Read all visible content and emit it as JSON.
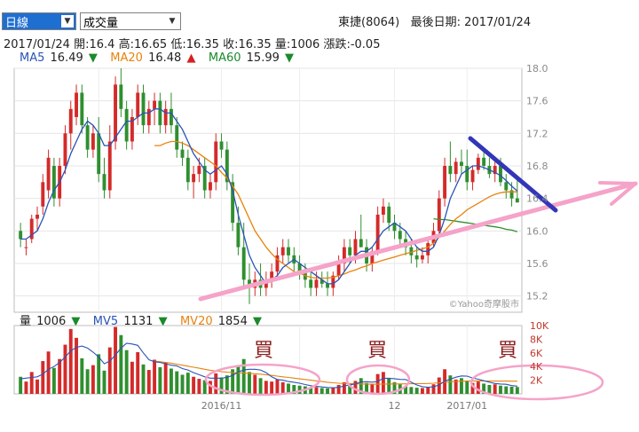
{
  "controls": {
    "period": "日線",
    "indicator": "成交量"
  },
  "header": {
    "stock": "東捷(8064)",
    "last_date_label": "最後日期:",
    "last_date": "2017/01/24"
  },
  "quote": {
    "date": "2017/01/24",
    "open_label": "開:",
    "open": "16.4",
    "high_label": "高:",
    "high": "16.65",
    "low_label": "低:",
    "low": "16.35",
    "close_label": "收:",
    "close": "16.35",
    "vol_label": "量:",
    "vol": "1006",
    "chg_label": "漲跌:",
    "chg": "-0.05"
  },
  "ma_legend": [
    {
      "label": "MA5",
      "value": "16.49",
      "dir": "▼",
      "color": "#2a53b8",
      "dircolor": "#1b8a2b"
    },
    {
      "label": "MA20",
      "value": "16.48",
      "dir": "▲",
      "color": "#e8820c",
      "dircolor": "#d62020"
    },
    {
      "label": "MA60",
      "value": "15.99",
      "dir": "▼",
      "color": "#1b8a2b",
      "dircolor": "#1b8a2b"
    }
  ],
  "vol_legend": [
    {
      "label": "量",
      "value": "1006",
      "dir": "▼",
      "color": "#222",
      "dircolor": "#1b8a2b"
    },
    {
      "label": "MV5",
      "value": "1131",
      "dir": "▼",
      "color": "#2a53b8",
      "dircolor": "#1b8a2b"
    },
    {
      "label": "MV20",
      "value": "1854",
      "dir": "▼",
      "color": "#e8820c",
      "dircolor": "#1b8a2b"
    }
  ],
  "watermark": "©Yahoo奇摩股市",
  "annotations": {
    "buy1": "買",
    "buy2": "買",
    "buy3": "買"
  },
  "colors": {
    "up": "#d42a2a",
    "down": "#2f8f2f",
    "ma5": "#2a53b8",
    "ma20": "#e8820c",
    "ma60": "#2f8f2f",
    "pink": "#f5a3c8",
    "blue_trend": "#3236b8"
  },
  "chart_data": [
    {
      "type": "candlestick",
      "ylim": [
        15.0,
        18.0
      ],
      "y_ticks": [
        "18.0",
        "17.6",
        "17.2",
        "16.8",
        "16.4",
        "16.0",
        "15.6",
        "15.2"
      ],
      "x_tick_labels": [
        "2016/11",
        "12",
        "2017/01"
      ],
      "candles": [
        [
          16.0,
          16.1,
          15.8,
          15.9
        ],
        [
          15.8,
          15.9,
          15.7,
          15.8
        ],
        [
          15.9,
          16.2,
          15.85,
          16.15
        ],
        [
          16.15,
          16.3,
          16.0,
          16.2
        ],
        [
          16.3,
          16.7,
          16.2,
          16.6
        ],
        [
          16.5,
          17.0,
          16.4,
          16.9
        ],
        [
          16.8,
          16.9,
          16.3,
          16.4
        ],
        [
          16.4,
          16.9,
          16.3,
          16.8
        ],
        [
          16.8,
          17.3,
          16.7,
          17.2
        ],
        [
          17.2,
          17.6,
          17.0,
          17.5
        ],
        [
          17.4,
          17.8,
          17.3,
          17.7
        ],
        [
          17.7,
          17.8,
          17.2,
          17.3
        ],
        [
          17.3,
          17.4,
          16.9,
          17.0
        ],
        [
          17.0,
          17.3,
          16.9,
          17.2
        ],
        [
          17.2,
          17.4,
          16.6,
          16.7
        ],
        [
          16.7,
          16.9,
          16.4,
          16.5
        ],
        [
          16.5,
          17.3,
          16.4,
          17.1
        ],
        [
          17.1,
          17.9,
          17.0,
          17.8
        ],
        [
          17.8,
          18.0,
          17.4,
          17.5
        ],
        [
          17.5,
          17.6,
          17.0,
          17.1
        ],
        [
          17.1,
          17.5,
          17.0,
          17.4
        ],
        [
          17.4,
          17.8,
          17.3,
          17.7
        ],
        [
          17.7,
          17.8,
          17.2,
          17.3
        ],
        [
          17.3,
          17.6,
          17.2,
          17.5
        ],
        [
          17.5,
          17.7,
          17.3,
          17.6
        ],
        [
          17.6,
          17.7,
          17.2,
          17.3
        ],
        [
          17.3,
          17.6,
          17.2,
          17.5
        ],
        [
          17.5,
          17.7,
          17.2,
          17.3
        ],
        [
          17.3,
          17.4,
          16.9,
          17.0
        ],
        [
          17.0,
          17.1,
          16.8,
          16.9
        ],
        [
          16.9,
          17.0,
          16.5,
          16.6
        ],
        [
          16.6,
          16.8,
          16.4,
          16.7
        ],
        [
          16.7,
          16.9,
          16.6,
          16.8
        ],
        [
          16.8,
          16.9,
          16.4,
          16.5
        ],
        [
          16.5,
          16.7,
          16.4,
          16.6
        ],
        [
          16.6,
          17.2,
          16.5,
          17.1
        ],
        [
          17.1,
          17.2,
          16.9,
          17.0
        ],
        [
          17.0,
          17.1,
          16.5,
          16.6
        ],
        [
          16.6,
          16.7,
          16.0,
          16.1
        ],
        [
          16.1,
          16.3,
          15.7,
          15.8
        ],
        [
          15.8,
          16.1,
          15.3,
          15.4
        ],
        [
          15.4,
          15.6,
          15.1,
          15.3
        ],
        [
          15.3,
          15.5,
          15.2,
          15.4
        ],
        [
          15.4,
          15.6,
          15.2,
          15.3
        ],
        [
          15.3,
          15.5,
          15.2,
          15.4
        ],
        [
          15.4,
          15.6,
          15.3,
          15.5
        ],
        [
          15.5,
          15.8,
          15.4,
          15.7
        ],
        [
          15.7,
          15.9,
          15.6,
          15.8
        ],
        [
          15.8,
          15.9,
          15.6,
          15.7
        ],
        [
          15.7,
          15.8,
          15.5,
          15.6
        ],
        [
          15.6,
          15.7,
          15.4,
          15.5
        ],
        [
          15.5,
          15.6,
          15.3,
          15.4
        ],
        [
          15.4,
          15.5,
          15.2,
          15.3
        ],
        [
          15.3,
          15.5,
          15.2,
          15.4
        ],
        [
          15.4,
          15.5,
          15.3,
          15.35
        ],
        [
          15.35,
          15.5,
          15.2,
          15.3
        ],
        [
          15.3,
          15.5,
          15.2,
          15.45
        ],
        [
          15.45,
          15.7,
          15.4,
          15.6
        ],
        [
          15.6,
          15.9,
          15.5,
          15.8
        ],
        [
          15.8,
          15.9,
          15.6,
          15.7
        ],
        [
          15.7,
          16.0,
          15.6,
          15.9
        ],
        [
          15.9,
          16.2,
          15.8,
          15.8
        ],
        [
          15.8,
          15.9,
          15.5,
          15.6
        ],
        [
          15.6,
          15.8,
          15.5,
          15.75
        ],
        [
          15.75,
          16.3,
          15.7,
          16.2
        ],
        [
          16.2,
          16.4,
          16.1,
          16.3
        ],
        [
          16.3,
          16.35,
          16.0,
          16.1
        ],
        [
          16.1,
          16.2,
          15.9,
          16.0
        ],
        [
          16.0,
          16.1,
          15.8,
          15.9
        ],
        [
          15.9,
          16.0,
          15.7,
          15.8
        ],
        [
          15.8,
          15.9,
          15.6,
          15.7
        ],
        [
          15.7,
          15.8,
          15.55,
          15.65
        ],
        [
          15.65,
          15.8,
          15.6,
          15.7
        ],
        [
          15.7,
          15.9,
          15.6,
          15.85
        ],
        [
          15.85,
          16.1,
          15.8,
          16.0
        ],
        [
          16.0,
          16.5,
          15.95,
          16.4
        ],
        [
          16.4,
          16.9,
          16.3,
          16.8
        ],
        [
          16.8,
          17.1,
          16.6,
          16.7
        ],
        [
          16.7,
          16.9,
          16.6,
          16.85
        ],
        [
          16.85,
          17.0,
          16.7,
          16.8
        ],
        [
          16.8,
          17.0,
          16.5,
          16.6
        ],
        [
          16.6,
          16.8,
          16.5,
          16.75
        ],
        [
          16.75,
          16.95,
          16.7,
          16.9
        ],
        [
          16.9,
          17.0,
          16.75,
          16.8
        ],
        [
          16.8,
          16.9,
          16.65,
          16.7
        ],
        [
          16.7,
          16.85,
          16.6,
          16.8
        ],
        [
          16.8,
          16.9,
          16.55,
          16.6
        ],
        [
          16.6,
          16.7,
          16.4,
          16.5
        ],
        [
          16.5,
          16.6,
          16.3,
          16.4
        ],
        [
          16.4,
          16.65,
          16.35,
          16.35
        ]
      ],
      "ma5": [
        15.9,
        15.9,
        15.95,
        16.0,
        16.15,
        16.35,
        16.5,
        16.6,
        16.75,
        16.95,
        17.1,
        17.25,
        17.35,
        17.3,
        17.2,
        17.05,
        17.05,
        17.15,
        17.25,
        17.35,
        17.35,
        17.4,
        17.45,
        17.45,
        17.5,
        17.5,
        17.45,
        17.45,
        17.35,
        17.25,
        17.1,
        16.95,
        16.85,
        16.75,
        16.7,
        16.75,
        16.8,
        16.7,
        16.5,
        16.2,
        15.95,
        15.7,
        15.55,
        15.45,
        15.35,
        15.4,
        15.45,
        15.55,
        15.6,
        15.65,
        15.6,
        15.55,
        15.5,
        15.45,
        15.4,
        15.35,
        15.35,
        15.4,
        15.5,
        15.6,
        15.7,
        15.75,
        15.75,
        15.8,
        15.9,
        16.0,
        16.05,
        16.1,
        16.05,
        16.0,
        15.9,
        15.8,
        15.75,
        15.75,
        15.8,
        15.95,
        16.15,
        16.4,
        16.55,
        16.7,
        16.75,
        16.8,
        16.8,
        16.78,
        16.75,
        16.72,
        16.68,
        16.62,
        16.55,
        16.49
      ],
      "ma20": [
        null,
        null,
        null,
        null,
        null,
        null,
        null,
        null,
        null,
        null,
        null,
        null,
        null,
        null,
        null,
        null,
        null,
        null,
        null,
        null,
        null,
        null,
        null,
        null,
        17.05,
        17.05,
        17.08,
        17.1,
        17.1,
        17.08,
        17.05,
        17.0,
        16.95,
        16.9,
        16.85,
        16.8,
        16.72,
        16.65,
        16.55,
        16.45,
        16.3,
        16.15,
        16.0,
        15.9,
        15.8,
        15.72,
        15.65,
        15.6,
        15.55,
        15.5,
        15.48,
        15.45,
        15.43,
        15.42,
        15.42,
        15.42,
        15.43,
        15.45,
        15.47,
        15.5,
        15.52,
        15.55,
        15.57,
        15.6,
        15.62,
        15.64,
        15.66,
        15.68,
        15.7,
        15.72,
        15.74,
        15.76,
        15.78,
        15.8,
        15.85,
        15.92,
        16.0,
        16.08,
        16.15,
        16.2,
        16.26,
        16.3,
        16.34,
        16.38,
        16.42,
        16.45,
        16.47,
        16.48,
        16.48,
        16.48
      ],
      "ma60": [
        null,
        null,
        null,
        null,
        null,
        null,
        null,
        null,
        null,
        null,
        null,
        null,
        null,
        null,
        null,
        null,
        null,
        null,
        null,
        null,
        null,
        null,
        null,
        null,
        null,
        null,
        null,
        null,
        null,
        null,
        null,
        null,
        null,
        null,
        null,
        null,
        null,
        null,
        null,
        null,
        null,
        null,
        null,
        null,
        null,
        null,
        null,
        null,
        null,
        null,
        null,
        null,
        null,
        null,
        null,
        null,
        null,
        null,
        null,
        null,
        null,
        null,
        null,
        null,
        null,
        null,
        null,
        null,
        null,
        null,
        null,
        null,
        null,
        null,
        16.15,
        16.14,
        16.14,
        16.13,
        16.12,
        16.11,
        16.1,
        16.09,
        16.08,
        16.07,
        16.06,
        16.05,
        16.04,
        16.02,
        16.01,
        15.99
      ]
    },
    {
      "type": "bar",
      "ylim": [
        0,
        10000
      ],
      "y_ticks": [
        "10K",
        "8K",
        "6K",
        "4K",
        "2K"
      ],
      "volume": [
        2500,
        1800,
        3200,
        2100,
        4800,
        6200,
        3800,
        5100,
        7200,
        9500,
        8200,
        5200,
        3600,
        4200,
        5800,
        3400,
        6800,
        9800,
        8600,
        6400,
        4700,
        6100,
        4300,
        3500,
        5000,
        3900,
        4600,
        3700,
        3300,
        2800,
        3100,
        2500,
        2200,
        2000,
        1900,
        3000,
        2400,
        2700,
        3600,
        4200,
        5100,
        3200,
        2800,
        2300,
        1900,
        1800,
        2100,
        1700,
        1500,
        1300,
        1200,
        1100,
        900,
        1000,
        850,
        800,
        950,
        1300,
        1700,
        1400,
        1900,
        2300,
        1600,
        1400,
        2900,
        3200,
        2300,
        1700,
        1400,
        1100,
        1000,
        900,
        850,
        1000,
        1400,
        2400,
        3600,
        2700,
        2100,
        2300,
        1900,
        1600,
        1800,
        1500,
        1300,
        1400,
        1200,
        1100,
        1050,
        1006
      ],
      "mv5": [
        2200,
        2300,
        2400,
        2500,
        2900,
        3600,
        4000,
        4600,
        5400,
        6300,
        6800,
        7000,
        6700,
        6100,
        5400,
        4400,
        4800,
        5700,
        6700,
        7400,
        7300,
        7100,
        6000,
        5000,
        4700,
        4600,
        4400,
        4200,
        4100,
        3700,
        3500,
        3100,
        2800,
        2500,
        2300,
        2300,
        2300,
        2400,
        2700,
        3200,
        3500,
        3600,
        3600,
        3500,
        3100,
        2500,
        2100,
        2000,
        1800,
        1700,
        1560,
        1360,
        1200,
        1100,
        1010,
        930,
        880,
        950,
        1150,
        1330,
        1450,
        1730,
        1780,
        1720,
        1820,
        2280,
        2280,
        2220,
        2120,
        2100,
        1700,
        1300,
        1050,
        970,
        1030,
        1310,
        1850,
        2150,
        2440,
        2620,
        2600,
        2320,
        2140,
        1920,
        1720,
        1520,
        1440,
        1400,
        1210,
        1131
      ],
      "mv20": [
        null,
        null,
        null,
        null,
        null,
        null,
        null,
        null,
        null,
        null,
        null,
        null,
        null,
        null,
        null,
        null,
        null,
        null,
        null,
        null,
        null,
        null,
        null,
        null,
        4800,
        4700,
        4600,
        4500,
        4350,
        4200,
        4050,
        3900,
        3750,
        3600,
        3450,
        3350,
        3250,
        3180,
        3120,
        3080,
        3050,
        3000,
        2950,
        2880,
        2800,
        2700,
        2600,
        2500,
        2400,
        2300,
        2200,
        2100,
        2000,
        1900,
        1800,
        1700,
        1620,
        1560,
        1520,
        1500,
        1480,
        1460,
        1440,
        1420,
        1420,
        1430,
        1440,
        1450,
        1460,
        1470,
        1480,
        1490,
        1500,
        1520,
        1560,
        1620,
        1690,
        1760,
        1820,
        1860,
        1880,
        1890,
        1890,
        1885,
        1880,
        1875,
        1870,
        1865,
        1860,
        1854
      ]
    }
  ]
}
